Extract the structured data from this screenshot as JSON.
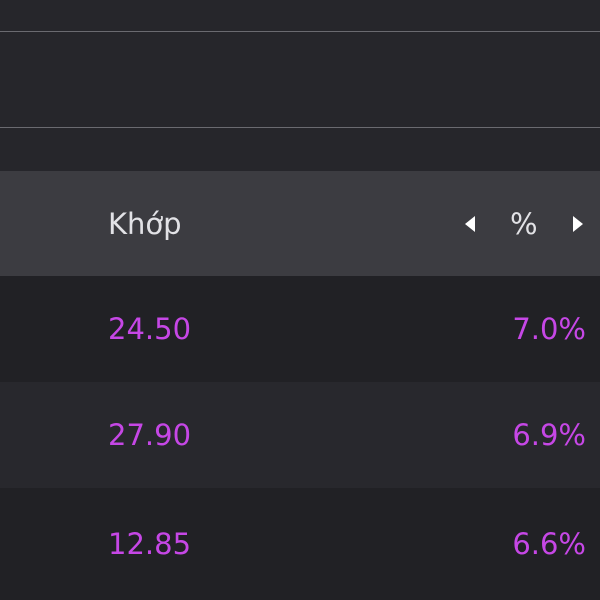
{
  "table": {
    "header": [
      "Khớp",
      "%"
    ],
    "rows": [
      [
        "24.50",
        "7.0%"
      ],
      [
        "27.90",
        "6.9%"
      ],
      [
        "12.85",
        "6.6%"
      ]
    ]
  }
}
